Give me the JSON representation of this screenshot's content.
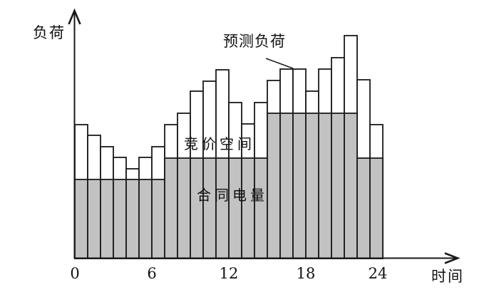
{
  "chart_data": {
    "type": "bar",
    "title": "",
    "ylabel": "负荷",
    "xlabel": "时间",
    "x_unit": "hour",
    "y_unit": "relative load (axis unlabeled, values in screen units)",
    "xlim": [
      0,
      24
    ],
    "x_ticks": [
      0,
      6,
      12,
      18,
      24
    ],
    "grid": false,
    "legend_position": "none (in-plot annotations)",
    "bar_width_hours": 1,
    "hours": [
      0,
      1,
      2,
      3,
      4,
      5,
      6,
      7,
      8,
      9,
      10,
      11,
      12,
      13,
      14,
      15,
      16,
      17,
      18,
      19,
      20,
      21,
      22,
      23
    ],
    "series": [
      {
        "name": "预测负荷",
        "role": "predicted-load-total",
        "fill": "#ffffff",
        "values": [
          188,
          173,
          157,
          142,
          126,
          142,
          157,
          188,
          204,
          235,
          249,
          265,
          219,
          189,
          219,
          250,
          266,
          266,
          235,
          266,
          282,
          313,
          251,
          188
        ]
      },
      {
        "name": "合同电量",
        "role": "contract-energy",
        "fill": "#c2c2c2",
        "values": [
          111,
          111,
          111,
          111,
          111,
          111,
          111,
          141,
          141,
          141,
          141,
          141,
          141,
          141,
          141,
          204,
          204,
          204,
          204,
          204,
          204,
          204,
          141,
          141
        ]
      }
    ],
    "annotations": {
      "predicted": "预测负荷",
      "bidding_space": "竞价空间",
      "contract": "合同电量"
    }
  },
  "style": {
    "outline": "#1a1a1a",
    "contract_fill": "#c2c2c2",
    "predicted_fill": "#ffffff",
    "background": "#ffffff"
  }
}
